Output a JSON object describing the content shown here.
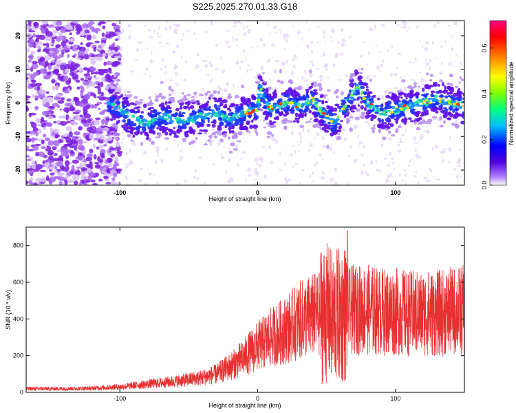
{
  "title": "S225.2025.270.01.33.G18",
  "chart_data": [
    {
      "type": "heatmap",
      "xlabel": "Height of straight line (km)",
      "ylabel": "Frequency (Hz)",
      "xlim": [
        -168,
        150
      ],
      "ylim": [
        -24.5,
        24.5
      ],
      "xticks": [
        -100,
        0,
        100
      ],
      "xtick_labels": [
        "-100",
        "0",
        "100"
      ],
      "yticks": [
        -20,
        -10,
        0,
        10,
        20
      ],
      "ytick_labels": [
        "-20",
        "-10",
        "0",
        "10",
        "20"
      ],
      "colorbar": {
        "label": "Normalized spectral amplitude",
        "range": [
          0.0,
          0.72
        ],
        "ticks": [
          0.0,
          0.2,
          0.4,
          0.6
        ],
        "tick_labels": [
          "0.0",
          "0.2",
          "0.4",
          "0.6"
        ]
      },
      "ridge": {
        "x": [
          -108,
          -100,
          -90,
          -80,
          -70,
          -60,
          -50,
          -40,
          -30,
          -20,
          -10,
          0,
          2,
          5,
          10,
          20,
          30,
          40,
          45,
          50,
          55,
          60,
          70,
          72,
          80,
          90,
          100,
          110,
          120,
          130,
          140,
          150
        ],
        "y": [
          0,
          -2,
          -5,
          -6,
          -4,
          -5,
          -5,
          -4,
          -3,
          -5,
          -3,
          -2,
          5,
          1,
          -2,
          0,
          -1,
          1,
          -2,
          -4,
          -6,
          -3,
          3,
          5,
          0,
          -3,
          -2,
          -1,
          0,
          1,
          0,
          -1
        ]
      }
    },
    {
      "type": "line",
      "series_name": "SNR",
      "color": "#e83030",
      "xlabel": "Height of straight line (km)",
      "ylabel": "SNR (10 * v/v)",
      "xlim": [
        -168,
        150
      ],
      "ylim": [
        0,
        900
      ],
      "xticks": [
        -100,
        0,
        100
      ],
      "xtick_labels": [
        "-100",
        "0",
        "100"
      ],
      "yticks": [
        0,
        200,
        400,
        600,
        800
      ],
      "ytick_labels": [
        "0",
        "200",
        "400",
        "600",
        "800"
      ],
      "x": [
        -168,
        -140,
        -120,
        -100,
        -80,
        -60,
        -40,
        -30,
        -20,
        -10,
        0,
        10,
        20,
        30,
        40,
        50,
        55,
        60,
        65,
        70,
        80,
        90,
        100,
        110,
        120,
        130,
        140,
        150
      ],
      "y": [
        20,
        20,
        22,
        30,
        45,
        60,
        80,
        100,
        140,
        190,
        250,
        300,
        340,
        390,
        420,
        430,
        410,
        420,
        440,
        450,
        450,
        440,
        440,
        430,
        430,
        430,
        440,
        450
      ],
      "peak": [
        65,
        880
      ]
    }
  ]
}
